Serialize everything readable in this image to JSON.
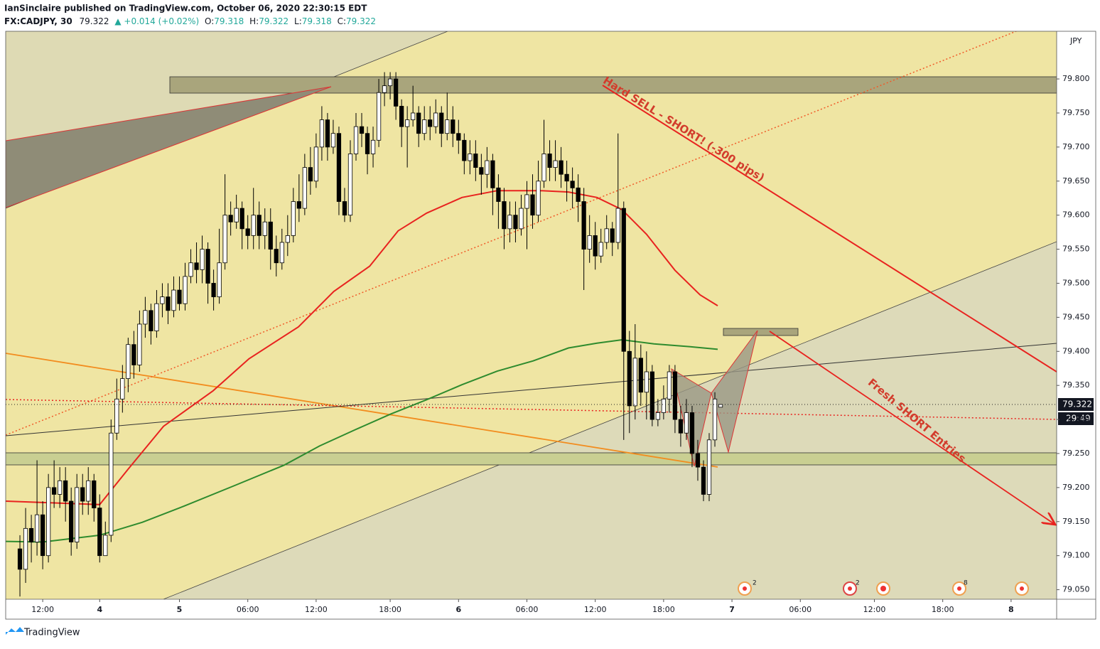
{
  "chart_data": {
    "type": "candlestick",
    "author_line": "IanSinclaire published on TradingView.com, October 06, 2020 22:30:15 EDT",
    "symbol": "FX:CADJPY, 30",
    "last": "79.322",
    "change": "▲ +0.014 (+0.02%)",
    "ohlc_labels": [
      "O:",
      "H:",
      "L:",
      "C:"
    ],
    "ohlc_values": [
      "79.318",
      "79.322",
      "79.318",
      "79.322"
    ],
    "currency": "JPY",
    "price_label": "79.322",
    "countdown": "29:49",
    "annotations": [
      "Hard SELL - SHORT! (-300 pips)",
      "Fresh SHORT Entries"
    ],
    "event_badges": [
      "2",
      "2",
      "8"
    ],
    "brand": "TradingView",
    "up_color": "#ffffff",
    "down_color": "#000000",
    "wick_color": "#000000",
    "xlim": [
      -2.5,
      182
    ],
    "xticks": [
      {
        "value": 4,
        "label": "12:00"
      },
      {
        "value": 14,
        "label": "4"
      },
      {
        "value": 28,
        "label": "5"
      },
      {
        "value": 40,
        "label": "06:00"
      },
      {
        "value": 52,
        "label": "12:00"
      },
      {
        "value": 65,
        "label": "18:00"
      },
      {
        "value": 77,
        "label": "6"
      },
      {
        "value": 89,
        "label": "06:00"
      },
      {
        "value": 101,
        "label": "12:00"
      },
      {
        "value": 113,
        "label": "18:00"
      },
      {
        "value": 125,
        "label": "7"
      },
      {
        "value": 137,
        "label": "06:00"
      },
      {
        "value": 150,
        "label": "12:00"
      },
      {
        "value": 162,
        "label": "18:00"
      },
      {
        "value": 174,
        "label": "8"
      }
    ],
    "ylim": [
      79.036,
      79.87
    ],
    "yticks": [
      {
        "value": 79.05,
        "label": "79.050"
      },
      {
        "value": 79.1,
        "label": "79.100"
      },
      {
        "value": 79.15,
        "label": "79.150"
      },
      {
        "value": 79.2,
        "label": "79.200"
      },
      {
        "value": 79.25,
        "label": "79.250"
      },
      {
        "value": 79.3,
        "label": "79.300"
      },
      {
        "value": 79.35,
        "label": "79.350"
      },
      {
        "value": 79.4,
        "label": "79.400"
      },
      {
        "value": 79.45,
        "label": "79.450"
      },
      {
        "value": 79.5,
        "label": "79.500"
      },
      {
        "value": 79.55,
        "label": "79.550"
      },
      {
        "value": 79.6,
        "label": "79.600"
      },
      {
        "value": 79.65,
        "label": "79.650"
      },
      {
        "value": 79.7,
        "label": "79.700"
      },
      {
        "value": 79.75,
        "label": "79.750"
      },
      {
        "value": 79.8,
        "label": "79.800"
      }
    ],
    "open": [
      79.11,
      79.08,
      79.14,
      79.12,
      79.16,
      79.1,
      79.2,
      79.19,
      79.21,
      79.18,
      79.12,
      79.2,
      79.18,
      79.21,
      79.17,
      79.1,
      79.13,
      79.28,
      79.33,
      79.36,
      79.41,
      79.38,
      79.44,
      79.46,
      79.43,
      79.47,
      79.48,
      79.46,
      79.49,
      79.47,
      79.51,
      79.53,
      79.52,
      79.55,
      79.5,
      79.48,
      79.53,
      79.6,
      79.59,
      79.61,
      79.58,
      79.57,
      79.6,
      79.57,
      79.59,
      79.55,
      79.53,
      79.56,
      79.57,
      79.62,
      79.61,
      79.67,
      79.65,
      79.7,
      79.74,
      79.7,
      79.72,
      79.62,
      79.6,
      79.69,
      79.73,
      79.72,
      79.69,
      79.71,
      79.78,
      79.79,
      79.8,
      79.76,
      79.73,
      79.74,
      79.75,
      79.72,
      79.74,
      79.73,
      79.75,
      79.72,
      79.74,
      79.72,
      79.71,
      79.68,
      79.69,
      79.67,
      79.66,
      79.68,
      79.64,
      79.62,
      79.58,
      79.6,
      79.58,
      79.61,
      79.63,
      79.6,
      79.65,
      79.69,
      79.67,
      79.68,
      79.66,
      79.65,
      79.64,
      79.62,
      79.55,
      79.57,
      79.54,
      79.56,
      79.58,
      79.56,
      79.61,
      79.4,
      79.32,
      79.39,
      79.34,
      79.37,
      79.3,
      79.31,
      79.33,
      79.37,
      79.3,
      79.28,
      79.31,
      79.25,
      79.23,
      79.19,
      79.27,
      79.318
    ],
    "high": [
      79.13,
      79.17,
      79.16,
      79.24,
      79.18,
      79.22,
      79.24,
      79.23,
      79.23,
      79.2,
      79.22,
      79.22,
      79.23,
      79.22,
      79.19,
      79.15,
      79.3,
      79.36,
      79.38,
      79.42,
      79.43,
      79.46,
      79.48,
      79.47,
      79.49,
      79.5,
      79.5,
      79.51,
      79.51,
      79.53,
      79.55,
      79.56,
      79.57,
      79.56,
      79.52,
      79.58,
      79.66,
      79.62,
      79.63,
      79.62,
      79.6,
      79.64,
      79.62,
      79.61,
      79.61,
      79.57,
      79.58,
      79.6,
      79.64,
      79.66,
      79.69,
      79.7,
      79.72,
      79.76,
      79.75,
      79.74,
      79.73,
      79.64,
      79.71,
      79.75,
      79.75,
      79.73,
      79.73,
      79.8,
      79.81,
      79.81,
      79.81,
      79.77,
      79.76,
      79.79,
      79.76,
      79.76,
      79.76,
      79.77,
      79.76,
      79.78,
      79.76,
      79.74,
      79.72,
      79.71,
      79.71,
      79.69,
      79.7,
      79.69,
      79.66,
      79.64,
      79.62,
      79.62,
      79.63,
      79.65,
      79.66,
      79.68,
      79.74,
      79.71,
      79.71,
      79.7,
      79.68,
      79.67,
      79.66,
      79.64,
      79.6,
      79.59,
      79.58,
      79.6,
      79.59,
      79.72,
      79.62,
      79.43,
      79.44,
      79.41,
      79.4,
      79.38,
      79.33,
      79.35,
      79.38,
      79.38,
      79.32,
      79.33,
      79.32,
      79.27,
      79.24,
      79.28,
      79.34,
      79.322
    ],
    "low": [
      79.04,
      79.06,
      79.09,
      79.1,
      79.08,
      79.09,
      79.17,
      79.17,
      79.15,
      79.1,
      79.11,
      79.16,
      79.16,
      79.15,
      79.09,
      79.1,
      79.12,
      79.27,
      79.31,
      79.34,
      79.36,
      79.37,
      79.42,
      79.41,
      79.42,
      79.45,
      79.44,
      79.45,
      79.46,
      79.46,
      79.5,
      79.5,
      79.5,
      79.47,
      79.46,
      79.47,
      79.52,
      79.57,
      79.58,
      79.55,
      79.55,
      79.55,
      79.55,
      79.55,
      79.52,
      79.51,
      79.52,
      79.54,
      79.56,
      79.59,
      79.6,
      79.63,
      79.64,
      79.68,
      79.68,
      79.69,
      79.6,
      79.59,
      79.59,
      79.68,
      79.7,
      79.66,
      79.67,
      79.7,
      79.76,
      79.77,
      79.74,
      79.7,
      79.67,
      79.73,
      79.7,
      79.71,
      79.71,
      79.72,
      79.7,
      79.71,
      79.7,
      79.69,
      79.66,
      79.66,
      79.65,
      79.63,
      79.64,
      79.6,
      79.58,
      79.55,
      79.56,
      79.56,
      79.57,
      79.55,
      79.58,
      79.59,
      79.64,
      79.65,
      79.65,
      79.64,
      79.62,
      79.61,
      79.59,
      79.49,
      79.53,
      79.52,
      79.53,
      79.55,
      79.54,
      79.55,
      79.27,
      79.28,
      79.3,
      79.32,
      79.3,
      79.29,
      79.29,
      79.3,
      79.31,
      79.28,
      79.26,
      79.27,
      79.23,
      79.21,
      79.18,
      79.18,
      79.26,
      79.318
    ],
    "close": [
      79.08,
      79.14,
      79.12,
      79.16,
      79.1,
      79.2,
      79.19,
      79.21,
      79.18,
      79.12,
      79.2,
      79.18,
      79.21,
      79.17,
      79.1,
      79.13,
      79.28,
      79.33,
      79.36,
      79.41,
      79.38,
      79.44,
      79.46,
      79.43,
      79.47,
      79.48,
      79.46,
      79.49,
      79.47,
      79.51,
      79.53,
      79.52,
      79.55,
      79.5,
      79.48,
      79.53,
      79.6,
      79.59,
      79.61,
      79.58,
      79.57,
      79.6,
      79.57,
      79.59,
      79.55,
      79.53,
      79.56,
      79.57,
      79.62,
      79.61,
      79.67,
      79.65,
      79.7,
      79.74,
      79.7,
      79.72,
      79.62,
      79.6,
      79.69,
      79.73,
      79.72,
      79.69,
      79.71,
      79.78,
      79.79,
      79.8,
      79.76,
      79.73,
      79.74,
      79.75,
      79.72,
      79.74,
      79.73,
      79.75,
      79.72,
      79.74,
      79.72,
      79.71,
      79.68,
      79.69,
      79.67,
      79.66,
      79.68,
      79.64,
      79.62,
      79.58,
      79.6,
      79.58,
      79.61,
      79.63,
      79.6,
      79.65,
      79.69,
      79.67,
      79.68,
      79.66,
      79.65,
      79.64,
      79.62,
      79.55,
      79.57,
      79.54,
      79.56,
      79.58,
      79.56,
      79.61,
      79.4,
      79.32,
      79.39,
      79.34,
      79.37,
      79.3,
      79.31,
      79.33,
      79.37,
      79.3,
      79.28,
      79.31,
      79.25,
      79.23,
      79.19,
      79.27,
      79.33,
      79.322
    ],
    "overlays": [
      {
        "color": "#e8231f",
        "x": [
          -2.5,
          14,
          19,
          25.2,
          33.9,
          40.2,
          48.9,
          55.1,
          61.4,
          66.4,
          71.4,
          77.6,
          83.8,
          91.3,
          96.3,
          101.3,
          105.7,
          110,
          115,
          119.4,
          122.5
        ],
        "values": [
          79.18,
          79.175,
          79.227,
          79.29,
          79.342,
          79.389,
          79.436,
          79.488,
          79.525,
          79.577,
          79.603,
          79.626,
          79.636,
          79.636,
          79.634,
          79.626,
          79.608,
          79.572,
          79.519,
          79.483,
          79.467
        ]
      },
      {
        "color": "#2e8b2e",
        "x": [
          -2.5,
          4,
          14,
          21.5,
          28.9,
          37.7,
          46.4,
          52.6,
          58.9,
          65.1,
          71.4,
          77.6,
          83.8,
          90.1,
          96.3,
          101.3,
          105.7,
          111.3,
          117.5,
          122.5
        ],
        "values": [
          79.121,
          79.12,
          79.13,
          79.149,
          79.173,
          79.203,
          79.233,
          79.261,
          79.285,
          79.308,
          79.329,
          79.351,
          79.371,
          79.386,
          79.405,
          79.412,
          79.417,
          79.411,
          79.407,
          79.403
        ]
      }
    ]
  }
}
